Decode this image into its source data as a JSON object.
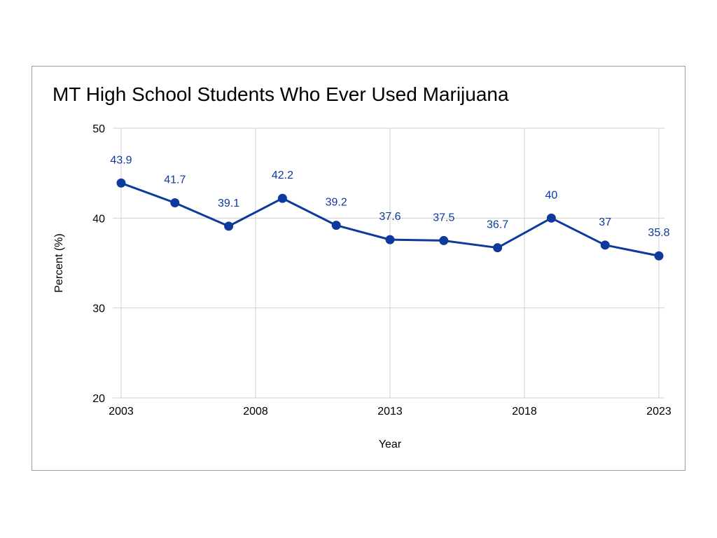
{
  "chart_data": {
    "type": "line",
    "title": "MT High School Students Who Ever Used Marijuana",
    "xlabel": "Year",
    "ylabel": "Percent (%)",
    "xlim": [
      2003,
      2023
    ],
    "ylim": [
      20,
      50
    ],
    "x_ticks": [
      2003,
      2008,
      2013,
      2018,
      2023
    ],
    "y_ticks": [
      20,
      30,
      40,
      50
    ],
    "grid": true,
    "data_labels": true,
    "series": [
      {
        "x": [
          2003,
          2005,
          2007,
          2009,
          2011,
          2013,
          2015,
          2017,
          2019,
          2021,
          2023
        ],
        "values": [
          43.9,
          41.7,
          39.1,
          42.2,
          39.2,
          37.6,
          37.5,
          36.7,
          40,
          37,
          35.8
        ],
        "color": "#0d3a9c"
      }
    ]
  }
}
